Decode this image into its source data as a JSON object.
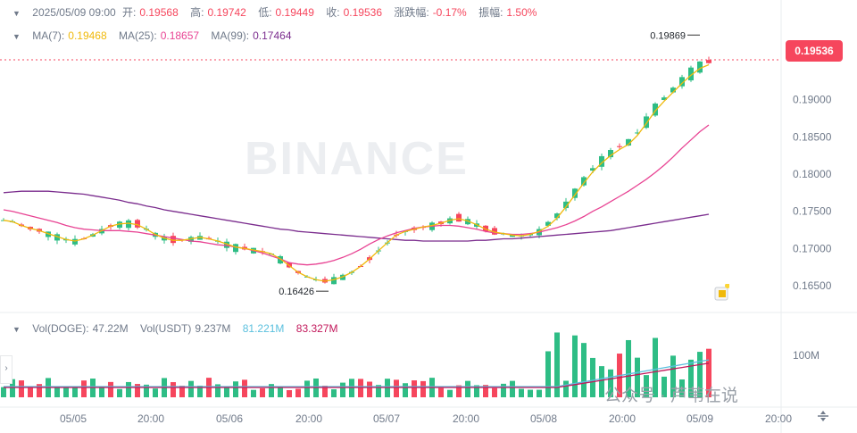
{
  "header": {
    "date": "2025/05/09 09:00",
    "open_label": "开:",
    "open": "0.19568",
    "high_label": "高:",
    "high": "0.19742",
    "low_label": "低:",
    "low": "0.19449",
    "close_label": "收:",
    "close": "0.19536",
    "change_label": "涨跌幅:",
    "change": "-0.17%",
    "amplitude_label": "振幅:",
    "amplitude": "1.50%"
  },
  "ma": {
    "ma7_label": "MA(7):",
    "ma7": "0.19468",
    "ma25_label": "MA(25):",
    "ma25": "0.18657",
    "ma99_label": "MA(99):",
    "ma99": "0.17464"
  },
  "volume": {
    "vol_doge_label": "Vol(DOGE):",
    "vol_doge": "47.22M",
    "vol_usdt_label": "Vol(USDT)",
    "vol_usdt": "9.237M",
    "v2": "81.221M",
    "v3": "83.327M"
  },
  "current_price": "0.19536",
  "watermark": "BINANCE",
  "credit": "公众号 · 芦苇在说",
  "colors": {
    "up": "#2ebd85",
    "down": "#f6465d",
    "ma7": "#f0b90b",
    "ma25": "#e84393",
    "ma99": "#7b2d8e",
    "vol_ma_a": "#5bc0de",
    "vol_ma_b": "#c2185b"
  },
  "chart_data": {
    "type": "candlestick",
    "price_axis_ticks": [
      0.19,
      0.185,
      0.18,
      0.175,
      0.17,
      0.165
    ],
    "price_axis_labels": [
      "0.19000",
      "0.18500",
      "0.18000",
      "0.17500",
      "0.17000",
      "0.16500"
    ],
    "ylim": [
      0.162,
      0.201
    ],
    "volume_axis_label": "100M",
    "x_tick_labels": [
      "05/05",
      "20:00",
      "05/06",
      "20:00",
      "05/07",
      "20:00",
      "05/08",
      "20:00",
      "05/09",
      "20:00"
    ],
    "annotations": {
      "max": "0.19869",
      "min": "0.16426"
    },
    "ma7_line": [
      0.1738,
      0.1736,
      0.1731,
      0.1727,
      0.1724,
      0.172,
      0.1716,
      0.1712,
      0.171,
      0.1713,
      0.1718,
      0.1724,
      0.173,
      0.1733,
      0.1734,
      0.1732,
      0.1726,
      0.1719,
      0.1714,
      0.1711,
      0.1711,
      0.1713,
      0.1715,
      0.1713,
      0.171,
      0.1706,
      0.1702,
      0.17,
      0.1698,
      0.1696,
      0.1693,
      0.1686,
      0.1677,
      0.1668,
      0.1662,
      0.1658,
      0.1656,
      0.1658,
      0.1662,
      0.1668,
      0.1676,
      0.1686,
      0.1697,
      0.1708,
      0.1718,
      0.1723,
      0.1726,
      0.1729,
      0.1731,
      0.1734,
      0.1738,
      0.174,
      0.1737,
      0.1732,
      0.1726,
      0.1722,
      0.172,
      0.1718,
      0.1717,
      0.1719,
      0.1723,
      0.173,
      0.1741,
      0.1756,
      0.1772,
      0.1788,
      0.1803,
      0.1815,
      0.1825,
      0.1833,
      0.184,
      0.1852,
      0.1868,
      0.1885,
      0.1898,
      0.191,
      0.1922,
      0.1933,
      0.1942,
      0.1947
    ],
    "ma25_line": [
      0.1752,
      0.175,
      0.1747,
      0.1744,
      0.1741,
      0.1738,
      0.1735,
      0.1731,
      0.1728,
      0.1726,
      0.1725,
      0.1724,
      0.1724,
      0.1724,
      0.1723,
      0.1722,
      0.172,
      0.1718,
      0.1716,
      0.1714,
      0.1712,
      0.171,
      0.1709,
      0.1707,
      0.1705,
      0.1704,
      0.1702,
      0.17,
      0.1697,
      0.1694,
      0.169,
      0.1686,
      0.1681,
      0.1679,
      0.1678,
      0.1679,
      0.1681,
      0.1684,
      0.1688,
      0.1693,
      0.1699,
      0.1706,
      0.1712,
      0.1717,
      0.1721,
      0.1724,
      0.1727,
      0.1729,
      0.173,
      0.1731,
      0.1731,
      0.173,
      0.1728,
      0.1726,
      0.1723,
      0.1721,
      0.172,
      0.1719,
      0.1719,
      0.172,
      0.1722,
      0.1725,
      0.1728,
      0.1732,
      0.1737,
      0.1743,
      0.175,
      0.1756,
      0.1763,
      0.177,
      0.1777,
      0.1785,
      0.1793,
      0.1802,
      0.1812,
      0.1823,
      0.1835,
      0.1846,
      0.1857,
      0.1866
    ],
    "ma99_line": [
      0.1775,
      0.1776,
      0.1777,
      0.1777,
      0.1777,
      0.1777,
      0.1776,
      0.1775,
      0.1774,
      0.1773,
      0.1771,
      0.1769,
      0.1767,
      0.1765,
      0.1762,
      0.176,
      0.1757,
      0.1755,
      0.1752,
      0.175,
      0.1748,
      0.1746,
      0.1744,
      0.1742,
      0.174,
      0.1738,
      0.1736,
      0.1734,
      0.1732,
      0.173,
      0.1728,
      0.1726,
      0.1725,
      0.1723,
      0.1722,
      0.1721,
      0.172,
      0.1719,
      0.1718,
      0.1717,
      0.1716,
      0.1715,
      0.1714,
      0.1713,
      0.1712,
      0.1711,
      0.1711,
      0.171,
      0.171,
      0.171,
      0.171,
      0.171,
      0.171,
      0.1711,
      0.1711,
      0.1712,
      0.1713,
      0.1713,
      0.1714,
      0.1715,
      0.1716,
      0.1717,
      0.1718,
      0.1719,
      0.172,
      0.1721,
      0.1722,
      0.1723,
      0.1724,
      0.1726,
      0.1728,
      0.173,
      0.1732,
      0.1734,
      0.1736,
      0.1738,
      0.174,
      0.1742,
      0.1744,
      0.1746
    ]
  }
}
